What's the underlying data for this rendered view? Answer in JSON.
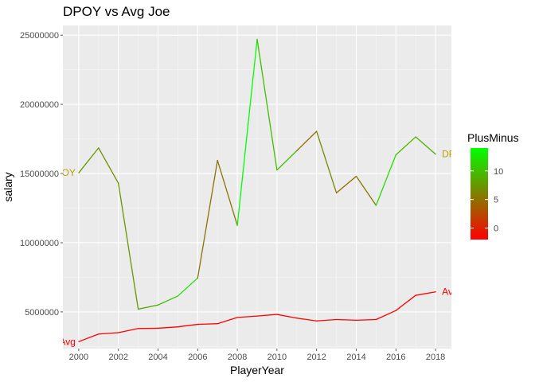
{
  "chart_data": {
    "type": "line",
    "title": "DPOY vs Avg Joe",
    "xlabel": "PlayerYear",
    "ylabel": "salary",
    "xlim": [
      1999.2,
      2018.8
    ],
    "ylim": [
      2350000,
      25700000
    ],
    "x_ticks": [
      2000,
      2002,
      2004,
      2006,
      2008,
      2010,
      2012,
      2014,
      2016,
      2018
    ],
    "x_tick_labels": [
      "2000",
      "2002",
      "2004",
      "2006",
      "2008",
      "2010",
      "2012",
      "2014",
      "2016",
      "2018"
    ],
    "y_ticks": [
      5000000,
      10000000,
      15000000,
      20000000,
      25000000
    ],
    "y_tick_labels": [
      "5000000",
      "10000000",
      "15000000",
      "20000000",
      "25000000"
    ],
    "grid": true,
    "color_scale": {
      "title": "PlusMinus",
      "min": -2,
      "max": 14,
      "low_color": "#ff0000",
      "high_color": "#00ff00",
      "ticks": [
        0,
        5,
        10
      ],
      "tick_labels": [
        "0",
        "5",
        "10"
      ]
    },
    "series": [
      {
        "label": "DPOY",
        "label_color": "#b8a000",
        "points": [
          {
            "x": 2000,
            "y": 15050000,
            "plusminus": 7.5
          },
          {
            "x": 2001,
            "y": 16850000,
            "plusminus": 7.5
          },
          {
            "x": 2002,
            "y": 14300000,
            "plusminus": 7.0
          },
          {
            "x": 2003,
            "y": 5200000,
            "plusminus": 7.5
          },
          {
            "x": 2004,
            "y": 5500000,
            "plusminus": 8.5
          },
          {
            "x": 2005,
            "y": 6150000,
            "plusminus": 10.0
          },
          {
            "x": 2006,
            "y": 7450000,
            "plusminus": 12.5
          },
          {
            "x": 2007,
            "y": 15950000,
            "plusminus": 5.0
          },
          {
            "x": 2008,
            "y": 11250000,
            "plusminus": 5.5
          },
          {
            "x": 2009,
            "y": 24700000,
            "plusminus": 14.0
          },
          {
            "x": 2010,
            "y": 15250000,
            "plusminus": 10.0
          },
          {
            "x": 2011,
            "y": 16650000,
            "plusminus": 10.0
          },
          {
            "x": 2012,
            "y": 18050000,
            "plusminus": 5.0
          },
          {
            "x": 2013,
            "y": 13600000,
            "plusminus": 6.5
          },
          {
            "x": 2014,
            "y": 14800000,
            "plusminus": 4.5
          },
          {
            "x": 2015,
            "y": 12700000,
            "plusminus": 5.5
          },
          {
            "x": 2016,
            "y": 16350000,
            "plusminus": 12.0
          },
          {
            "x": 2017,
            "y": 17650000,
            "plusminus": 10.0
          },
          {
            "x": 2018,
            "y": 16400000,
            "plusminus": 9.0
          }
        ]
      },
      {
        "label": "Avg",
        "label_color": "#ff0000",
        "points": [
          {
            "x": 2000,
            "y": 2850000,
            "plusminus": -2
          },
          {
            "x": 2001,
            "y": 3400000,
            "plusminus": -2
          },
          {
            "x": 2002,
            "y": 3500000,
            "plusminus": -2
          },
          {
            "x": 2003,
            "y": 3800000,
            "plusminus": -2
          },
          {
            "x": 2004,
            "y": 3820000,
            "plusminus": -2
          },
          {
            "x": 2005,
            "y": 3920000,
            "plusminus": -2
          },
          {
            "x": 2006,
            "y": 4100000,
            "plusminus": -2
          },
          {
            "x": 2007,
            "y": 4150000,
            "plusminus": -2
          },
          {
            "x": 2008,
            "y": 4600000,
            "plusminus": -2
          },
          {
            "x": 2009,
            "y": 4700000,
            "plusminus": -2
          },
          {
            "x": 2010,
            "y": 4820000,
            "plusminus": -2
          },
          {
            "x": 2011,
            "y": 4550000,
            "plusminus": -2
          },
          {
            "x": 2012,
            "y": 4350000,
            "plusminus": -2
          },
          {
            "x": 2013,
            "y": 4450000,
            "plusminus": -2
          },
          {
            "x": 2014,
            "y": 4400000,
            "plusminus": -2
          },
          {
            "x": 2015,
            "y": 4450000,
            "plusminus": -2
          },
          {
            "x": 2016,
            "y": 5100000,
            "plusminus": -2
          },
          {
            "x": 2017,
            "y": 6200000,
            "plusminus": -2
          },
          {
            "x": 2018,
            "y": 6450000,
            "plusminus": -2
          }
        ]
      }
    ]
  }
}
